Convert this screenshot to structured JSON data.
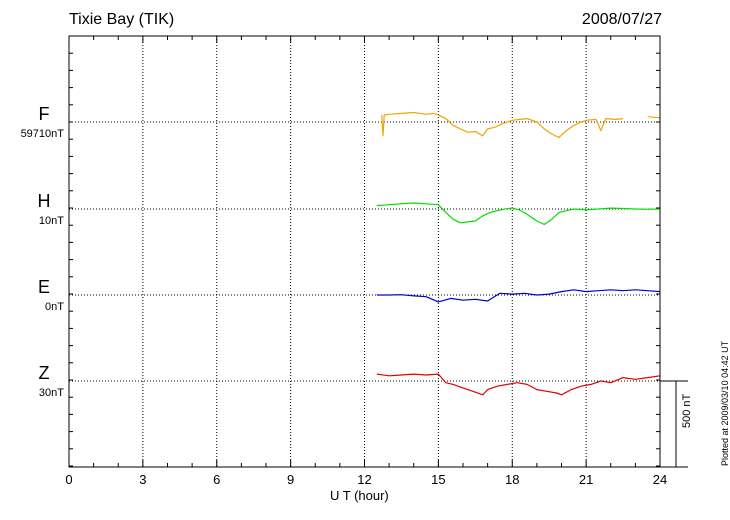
{
  "header": {
    "station": "Tixie Bay (TIK)",
    "date": "2008/07/27"
  },
  "footer": {
    "stamp": "Plotted at 2009/03/10 04:42 UT",
    "scale_bar_label": "500 nT"
  },
  "chart_data": {
    "type": "line",
    "title": "Tixie Bay (TIK)",
    "xlabel": "U T (hour)",
    "ylabel": "",
    "xlim": [
      0,
      24
    ],
    "x_ticks": [
      "0",
      "3",
      "6",
      "9",
      "12",
      "15",
      "18",
      "21",
      "24"
    ],
    "grid": true,
    "scale_bar_nT": 500,
    "series": [
      {
        "name": "F",
        "baseline": "59710nT",
        "color": "#f0a500",
        "x": [
          12.7,
          12.75,
          12.8,
          13.0,
          13.5,
          14.0,
          14.5,
          14.8,
          15.0,
          15.3,
          15.6,
          15.9,
          16.2,
          16.5,
          16.8,
          17.0,
          17.3,
          17.6,
          18.0,
          18.3,
          18.6,
          19.0,
          19.3,
          19.6,
          19.9,
          20.2,
          20.5,
          20.8,
          21.0,
          21.4,
          21.6,
          21.8,
          22.2,
          22.5,
          23.0,
          23.5,
          24.0
        ],
        "values": [
          40,
          -80,
          40,
          45,
          50,
          55,
          45,
          50,
          40,
          20,
          -20,
          -40,
          -60,
          -55,
          -80,
          -40,
          -30,
          -10,
          10,
          15,
          20,
          0,
          -40,
          -70,
          -90,
          -50,
          -20,
          0,
          10,
          15,
          -50,
          20,
          15,
          20,
          null,
          30,
          25
        ]
      },
      {
        "name": "H",
        "baseline": "10nT",
        "color": "#00e000",
        "x": [
          12.5,
          13.0,
          13.5,
          14.0,
          14.5,
          15.0,
          15.3,
          15.6,
          15.9,
          16.2,
          16.5,
          16.8,
          17.1,
          17.4,
          17.7,
          18.0,
          18.3,
          18.6,
          19.0,
          19.3,
          19.6,
          19.9,
          20.2,
          20.5,
          21.0,
          21.5,
          22.0,
          22.5,
          23.0,
          23.5,
          24.0
        ],
        "values": [
          20,
          25,
          30,
          35,
          30,
          25,
          -20,
          -60,
          -80,
          -75,
          -70,
          -40,
          -20,
          -10,
          0,
          5,
          -5,
          -30,
          -70,
          -90,
          -60,
          -20,
          -10,
          0,
          -5,
          0,
          5,
          3,
          0,
          -2,
          0
        ]
      },
      {
        "name": "E",
        "baseline": "0nT",
        "color": "#0000d0",
        "x": [
          12.5,
          13.0,
          13.5,
          14.0,
          14.5,
          15.0,
          15.5,
          16.0,
          16.5,
          17.0,
          17.5,
          18.0,
          18.5,
          19.0,
          19.5,
          20.0,
          20.5,
          21.0,
          21.5,
          22.0,
          22.5,
          23.0,
          23.5,
          24.0
        ],
        "values": [
          0,
          0,
          2,
          -5,
          -10,
          -40,
          -20,
          -30,
          -25,
          -35,
          10,
          5,
          10,
          0,
          5,
          20,
          30,
          20,
          25,
          30,
          25,
          30,
          25,
          20
        ]
      },
      {
        "name": "Z",
        "baseline": "30nT",
        "color": "#e00000",
        "x": [
          12.5,
          13.0,
          13.5,
          14.0,
          14.5,
          15.0,
          15.3,
          15.6,
          16.0,
          16.4,
          16.8,
          17.0,
          17.4,
          17.8,
          18.2,
          18.6,
          19.0,
          19.4,
          19.8,
          20.0,
          20.4,
          20.8,
          21.2,
          21.6,
          22.0,
          22.5,
          23.0,
          23.5,
          24.0
        ],
        "values": [
          40,
          30,
          35,
          40,
          35,
          40,
          -10,
          -20,
          -40,
          -60,
          -80,
          -50,
          -30,
          -20,
          -10,
          -20,
          -50,
          -60,
          -70,
          -80,
          -50,
          -30,
          -20,
          0,
          -10,
          20,
          10,
          20,
          30
        ]
      }
    ]
  }
}
